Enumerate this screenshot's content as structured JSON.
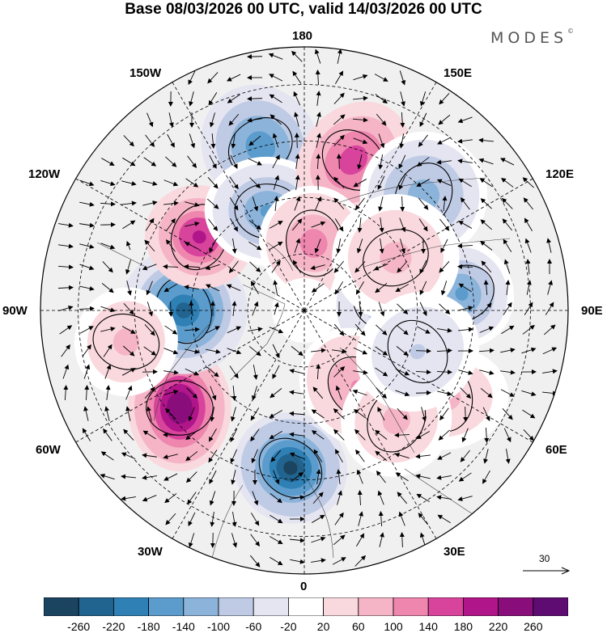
{
  "title": "Base 08/03/2026 00 UTC, valid 14/03/2026 00 UTC",
  "brand": "MODES",
  "brand_mark": "©",
  "longitude_labels": {
    "top": "180",
    "bottom": "0",
    "left": "90W",
    "right": "90E",
    "upper_left_1": "150W",
    "upper_left_2": "120W",
    "upper_right_1": "150E",
    "upper_right_2": "120E",
    "lower_left_1": "60W",
    "lower_left_2": "30W",
    "lower_right_1": "60E",
    "lower_right_2": "30E"
  },
  "reference_vector": {
    "value": "30"
  },
  "colorbar": {
    "ticks": [
      "-260",
      "-220",
      "-180",
      "-140",
      "-100",
      "-60",
      "-20",
      "20",
      "60",
      "100",
      "140",
      "180",
      "220",
      "260"
    ],
    "colors": [
      "#1b4461",
      "#21648f",
      "#2f80b5",
      "#5b9ccd",
      "#8cb4db",
      "#bfcbe5",
      "#e4e5f1",
      "#ffffff",
      "#f9d9de",
      "#f5b5c7",
      "#ee86ae",
      "#d8439c",
      "#b01589",
      "#8a0d7c",
      "#5e0c72"
    ]
  },
  "anomaly_centres": [
    {
      "sign": "positive",
      "value": 260,
      "lat": 48,
      "lon": -52
    },
    {
      "sign": "negative",
      "value": -260,
      "lat": 48,
      "lon": -5
    },
    {
      "sign": "negative",
      "value": -230,
      "lat": 58,
      "lon": -90
    },
    {
      "sign": "positive",
      "value": 200,
      "lat": 56,
      "lon": -125
    },
    {
      "sign": "negative",
      "value": -170,
      "lat": 45,
      "lon": -165
    },
    {
      "sign": "negative",
      "value": -150,
      "lat": 62,
      "lon": -160
    },
    {
      "sign": "positive",
      "value": 180,
      "lat": 48,
      "lon": 162
    },
    {
      "sign": "positive",
      "value": 120,
      "lat": 72,
      "lon": 172
    },
    {
      "sign": "negative",
      "value": -120,
      "lat": 46,
      "lon": 134
    },
    {
      "sign": "negative",
      "value": -140,
      "lat": 48,
      "lon": 96
    },
    {
      "sign": "negative",
      "value": -90,
      "lat": 68,
      "lon": 95
    },
    {
      "sign": "positive",
      "value": 110,
      "lat": 65,
      "lon": 35
    },
    {
      "sign": "positive",
      "value": 80,
      "lat": 46,
      "lon": 58
    },
    {
      "sign": "positive",
      "value": 70,
      "lat": 52,
      "lon": 40
    },
    {
      "sign": "positive",
      "value": 80,
      "lat": 62,
      "lon": 120
    },
    {
      "sign": "positive",
      "value": 70,
      "lat": 42,
      "lon": -80
    },
    {
      "sign": "negative",
      "value": -60,
      "lat": 58,
      "lon": 70
    }
  ]
}
